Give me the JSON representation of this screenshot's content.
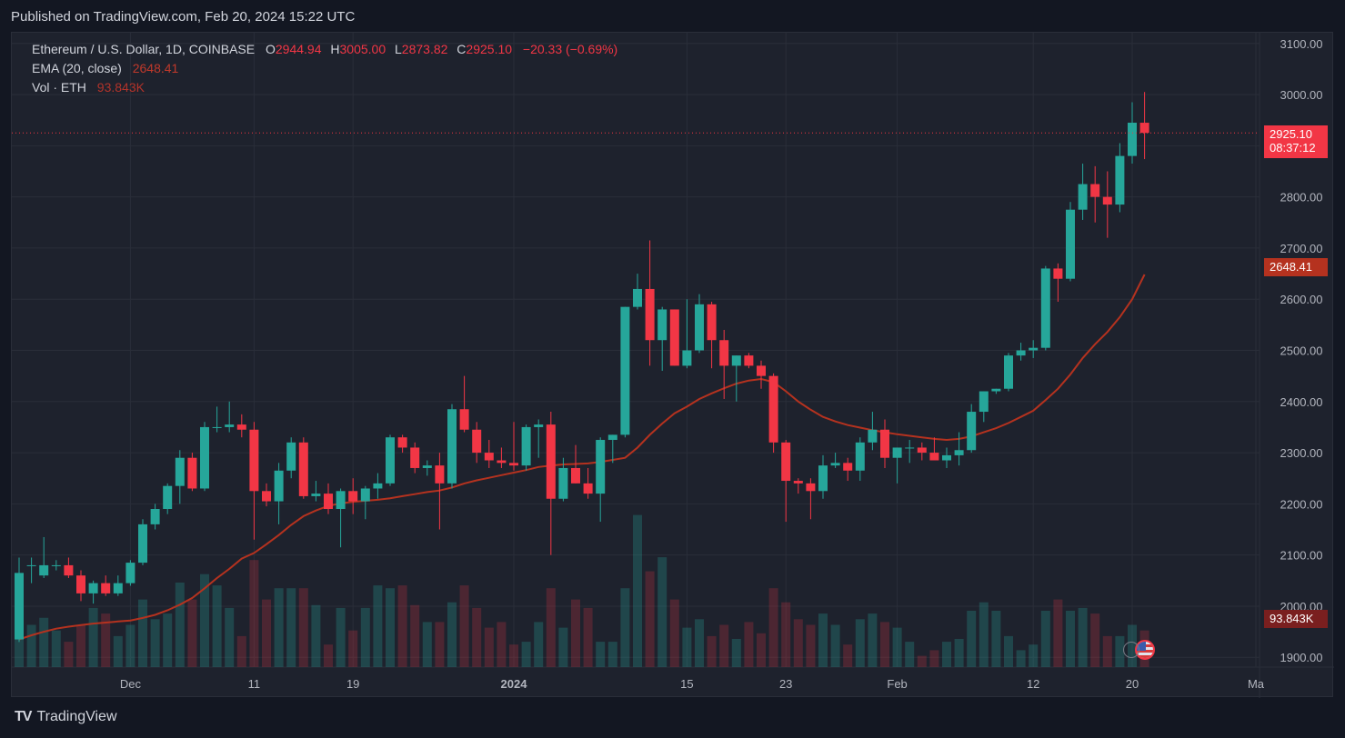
{
  "header": {
    "published": "Published on TradingView.com, Feb 20, 2024 15:22 UTC"
  },
  "legend": {
    "symbol": "Ethereum / U.S. Dollar, 1D, COINBASE",
    "o_label": "O",
    "o_value": "2944.94",
    "h_label": "H",
    "h_value": "3005.00",
    "l_label": "L",
    "l_value": "2873.82",
    "c_label": "C",
    "c_value": "2925.10",
    "change": "−20.33 (−0.69%)",
    "ema_label": "EMA (20, close)",
    "ema_value": "2648.41",
    "vol_label": "Vol · ETH",
    "vol_value": "93.843K"
  },
  "price_tags": {
    "last_price": "2925.10",
    "countdown": "08:37:12",
    "ema": "2648.41",
    "volume": "93.843K"
  },
  "footer": {
    "brand": "TradingView",
    "logo": "TV"
  },
  "colors": {
    "up": "#26a69a",
    "down": "#f23645",
    "ema": "#b5321f",
    "background": "#1e222d",
    "grid": "#2a2e39"
  },
  "chart_data": {
    "type": "candlestick",
    "title": "Ethereum / U.S. Dollar, 1D, COINBASE",
    "ylim": [
      1880,
      3120
    ],
    "y_ticks": [
      1900,
      2000,
      2100,
      2200,
      2300,
      2400,
      2500,
      2600,
      2700,
      2800,
      2900,
      3000,
      3100
    ],
    "x_ticks": [
      {
        "label": "Dec",
        "index": 9,
        "bold": false
      },
      {
        "label": "11",
        "index": 19,
        "bold": false
      },
      {
        "label": "19",
        "index": 27,
        "bold": false
      },
      {
        "label": "2024",
        "index": 40,
        "bold": true
      },
      {
        "label": "15",
        "index": 54,
        "bold": false
      },
      {
        "label": "23",
        "index": 62,
        "bold": false
      },
      {
        "label": "Feb",
        "index": 71,
        "bold": false
      },
      {
        "label": "12",
        "index": 82,
        "bold": false
      },
      {
        "label": "20",
        "index": 90,
        "bold": false
      },
      {
        "label": "Ma",
        "index": 100,
        "bold": false
      }
    ],
    "grid": true,
    "series": [
      {
        "name": "Ethereum / U.S. Dollar",
        "type": "candlestick",
        "columns": [
          "open",
          "high",
          "low",
          "close"
        ],
        "values": [
          [
            1935,
            2095,
            1930,
            2065
          ],
          [
            2080,
            2095,
            2045,
            2080
          ],
          [
            2060,
            2135,
            2055,
            2080
          ],
          [
            2080,
            2090,
            2070,
            2080
          ],
          [
            2080,
            2095,
            2055,
            2060
          ],
          [
            2060,
            2070,
            2010,
            2025
          ],
          [
            2025,
            2050,
            2005,
            2045
          ],
          [
            2045,
            2060,
            2020,
            2025
          ],
          [
            2025,
            2060,
            2020,
            2045
          ],
          [
            2045,
            2090,
            2040,
            2085
          ],
          [
            2085,
            2170,
            2080,
            2160
          ],
          [
            2160,
            2200,
            2150,
            2190
          ],
          [
            2190,
            2240,
            2180,
            2235
          ],
          [
            2235,
            2305,
            2200,
            2290
          ],
          [
            2290,
            2300,
            2225,
            2230
          ],
          [
            2230,
            2360,
            2225,
            2350
          ],
          [
            2350,
            2390,
            2340,
            2350
          ],
          [
            2350,
            2400,
            2340,
            2355
          ],
          [
            2355,
            2375,
            2330,
            2345
          ],
          [
            2345,
            2360,
            2130,
            2225
          ],
          [
            2225,
            2240,
            2195,
            2205
          ],
          [
            2205,
            2280,
            2160,
            2265
          ],
          [
            2265,
            2330,
            2250,
            2320
          ],
          [
            2320,
            2330,
            2210,
            2215
          ],
          [
            2215,
            2245,
            2205,
            2220
          ],
          [
            2220,
            2240,
            2180,
            2190
          ],
          [
            2190,
            2230,
            2115,
            2225
          ],
          [
            2225,
            2250,
            2180,
            2205
          ],
          [
            2205,
            2235,
            2170,
            2230
          ],
          [
            2230,
            2260,
            2210,
            2240
          ],
          [
            2240,
            2335,
            2235,
            2330
          ],
          [
            2330,
            2335,
            2300,
            2310
          ],
          [
            2310,
            2320,
            2260,
            2270
          ],
          [
            2270,
            2285,
            2255,
            2275
          ],
          [
            2275,
            2300,
            2150,
            2240
          ],
          [
            2240,
            2395,
            2230,
            2385
          ],
          [
            2385,
            2450,
            2340,
            2345
          ],
          [
            2345,
            2360,
            2280,
            2300
          ],
          [
            2300,
            2325,
            2270,
            2285
          ],
          [
            2285,
            2310,
            2270,
            2280
          ],
          [
            2280,
            2360,
            2265,
            2275
          ],
          [
            2275,
            2355,
            2265,
            2350
          ],
          [
            2350,
            2365,
            2290,
            2355
          ],
          [
            2355,
            2380,
            2100,
            2210
          ],
          [
            2210,
            2290,
            2205,
            2270
          ],
          [
            2270,
            2315,
            2240,
            2240
          ],
          [
            2240,
            2270,
            2210,
            2220
          ],
          [
            2220,
            2330,
            2165,
            2325
          ],
          [
            2325,
            2335,
            2280,
            2335
          ],
          [
            2335,
            2585,
            2330,
            2585
          ],
          [
            2585,
            2650,
            2580,
            2620
          ],
          [
            2620,
            2715,
            2470,
            2520
          ],
          [
            2520,
            2585,
            2460,
            2580
          ],
          [
            2580,
            2580,
            2470,
            2470
          ],
          [
            2470,
            2600,
            2465,
            2500
          ],
          [
            2500,
            2610,
            2495,
            2590
          ],
          [
            2590,
            2595,
            2465,
            2520
          ],
          [
            2520,
            2540,
            2405,
            2470
          ],
          [
            2470,
            2490,
            2400,
            2490
          ],
          [
            2490,
            2495,
            2465,
            2470
          ],
          [
            2470,
            2480,
            2425,
            2450
          ],
          [
            2450,
            2455,
            2300,
            2320
          ],
          [
            2320,
            2325,
            2165,
            2245
          ],
          [
            2245,
            2250,
            2220,
            2240
          ],
          [
            2240,
            2250,
            2170,
            2225
          ],
          [
            2225,
            2295,
            2210,
            2275
          ],
          [
            2275,
            2300,
            2270,
            2280
          ],
          [
            2280,
            2290,
            2245,
            2265
          ],
          [
            2265,
            2330,
            2245,
            2320
          ],
          [
            2320,
            2380,
            2305,
            2345
          ],
          [
            2345,
            2365,
            2270,
            2290
          ],
          [
            2290,
            2310,
            2240,
            2310
          ],
          [
            2310,
            2325,
            2280,
            2310
          ],
          [
            2310,
            2320,
            2285,
            2300
          ],
          [
            2300,
            2330,
            2290,
            2285
          ],
          [
            2285,
            2310,
            2270,
            2295
          ],
          [
            2295,
            2340,
            2275,
            2305
          ],
          [
            2305,
            2395,
            2300,
            2380
          ],
          [
            2380,
            2420,
            2360,
            2420
          ],
          [
            2420,
            2425,
            2415,
            2425
          ],
          [
            2425,
            2495,
            2420,
            2490
          ],
          [
            2490,
            2515,
            2480,
            2500
          ],
          [
            2500,
            2520,
            2485,
            2505
          ],
          [
            2505,
            2665,
            2500,
            2660
          ],
          [
            2660,
            2670,
            2595,
            2640
          ],
          [
            2640,
            2790,
            2635,
            2775
          ],
          [
            2775,
            2865,
            2755,
            2825
          ],
          [
            2825,
            2860,
            2750,
            2800
          ],
          [
            2800,
            2850,
            2720,
            2785
          ],
          [
            2785,
            2905,
            2770,
            2880
          ],
          [
            2880,
            2985,
            2865,
            2945
          ],
          [
            2944.94,
            3005,
            2873.82,
            2925.1
          ]
        ]
      },
      {
        "name": "Vol · ETH",
        "type": "bar",
        "values": [
          38,
          30,
          35,
          26,
          18,
          30,
          42,
          38,
          22,
          30,
          48,
          34,
          38,
          60,
          48,
          66,
          58,
          42,
          22,
          76,
          48,
          56,
          56,
          56,
          44,
          16,
          42,
          26,
          42,
          58,
          56,
          58,
          44,
          32,
          32,
          46,
          58,
          42,
          28,
          32,
          16,
          18,
          32,
          56,
          28,
          48,
          42,
          18,
          18,
          56,
          108,
          68,
          78,
          48,
          28,
          34,
          22,
          30,
          20,
          32,
          24,
          56,
          46,
          34,
          30,
          38,
          30,
          16,
          34,
          38,
          32,
          28,
          18,
          8,
          12,
          18,
          20,
          40,
          46,
          40,
          22,
          12,
          16,
          40,
          48,
          40,
          42,
          38,
          22,
          22,
          30,
          26
        ]
      },
      {
        "name": "EMA (20, close)",
        "type": "line",
        "values": [
          1935,
          1943,
          1950,
          1956,
          1960,
          1963,
          1966,
          1968,
          1970,
          1972,
          1977,
          1983,
          1992,
          2003,
          2016,
          2035,
          2055,
          2073,
          2093,
          2104,
          2121,
          2139,
          2159,
          2176,
          2187,
          2196,
          2201,
          2204,
          2206,
          2208,
          2211,
          2215,
          2219,
          2223,
          2226,
          2232,
          2240,
          2246,
          2251,
          2256,
          2261,
          2266,
          2272,
          2275,
          2277,
          2278,
          2279,
          2282,
          2286,
          2290,
          2310,
          2335,
          2357,
          2377,
          2390,
          2405,
          2416,
          2426,
          2435,
          2441,
          2444,
          2438,
          2420,
          2400,
          2384,
          2370,
          2361,
          2354,
          2349,
          2344,
          2340,
          2336,
          2333,
          2330,
          2327,
          2325,
          2327,
          2332,
          2340,
          2348,
          2358,
          2370,
          2382,
          2403,
          2425,
          2453,
          2485,
          2512,
          2536,
          2565,
          2600,
          2648.41
        ]
      }
    ]
  }
}
